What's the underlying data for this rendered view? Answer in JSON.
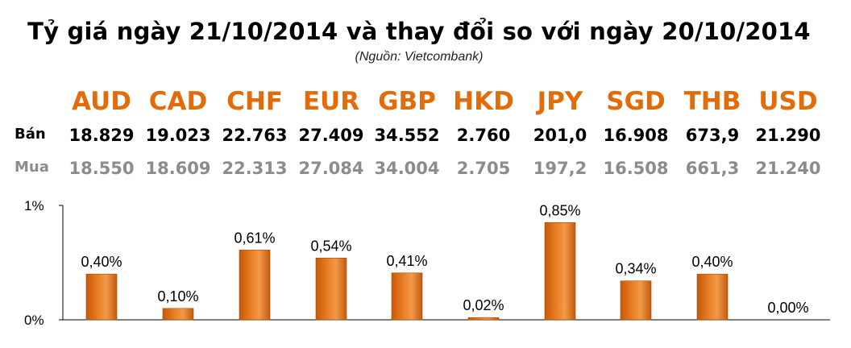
{
  "title": "Tỷ giá ngày 21/10/2014 và thay đổi so với ngày 20/10/2014",
  "source": "(Nguồn: Vietcombank)",
  "rows": {
    "sell_label": "Bán",
    "buy_label": "Mua"
  },
  "colors": {
    "currency_code": "#e36c0a",
    "bar_fill": "#e87b1f",
    "buy_text": "#8c8c8c"
  },
  "currencies": [
    {
      "code": "AUD",
      "sell": "18.829",
      "buy": "18.550"
    },
    {
      "code": "CAD",
      "sell": "19.023",
      "buy": "18.609"
    },
    {
      "code": "CHF",
      "sell": "22.763",
      "buy": "22.313"
    },
    {
      "code": "EUR",
      "sell": "27.409",
      "buy": "27.084"
    },
    {
      "code": "GBP",
      "sell": "34.552",
      "buy": "34.004"
    },
    {
      "code": "HKD",
      "sell": "2.760",
      "buy": "2.705"
    },
    {
      "code": "JPY",
      "sell": "201,0",
      "buy": "197,2"
    },
    {
      "code": "SGD",
      "sell": "16.908",
      "buy": "16.508"
    },
    {
      "code": "THB",
      "sell": "673,9",
      "buy": "661,3"
    },
    {
      "code": "USD",
      "sell": "21.290",
      "buy": "21.240"
    }
  ],
  "chart_data": {
    "type": "bar",
    "categories": [
      "AUD",
      "CAD",
      "CHF",
      "EUR",
      "GBP",
      "HKD",
      "JPY",
      "SGD",
      "THB",
      "USD"
    ],
    "values": [
      0.4,
      0.1,
      0.61,
      0.54,
      0.41,
      0.02,
      0.85,
      0.34,
      0.4,
      0.0
    ],
    "data_labels": [
      "0,40%",
      "0,10%",
      "0,61%",
      "0,54%",
      "0,41%",
      "0,02%",
      "0,85%",
      "0,34%",
      "0,40%",
      "0,00%"
    ],
    "ylim": [
      0,
      1
    ],
    "yticks": [
      "0%",
      "1%"
    ],
    "grid": false,
    "legend": "none"
  }
}
